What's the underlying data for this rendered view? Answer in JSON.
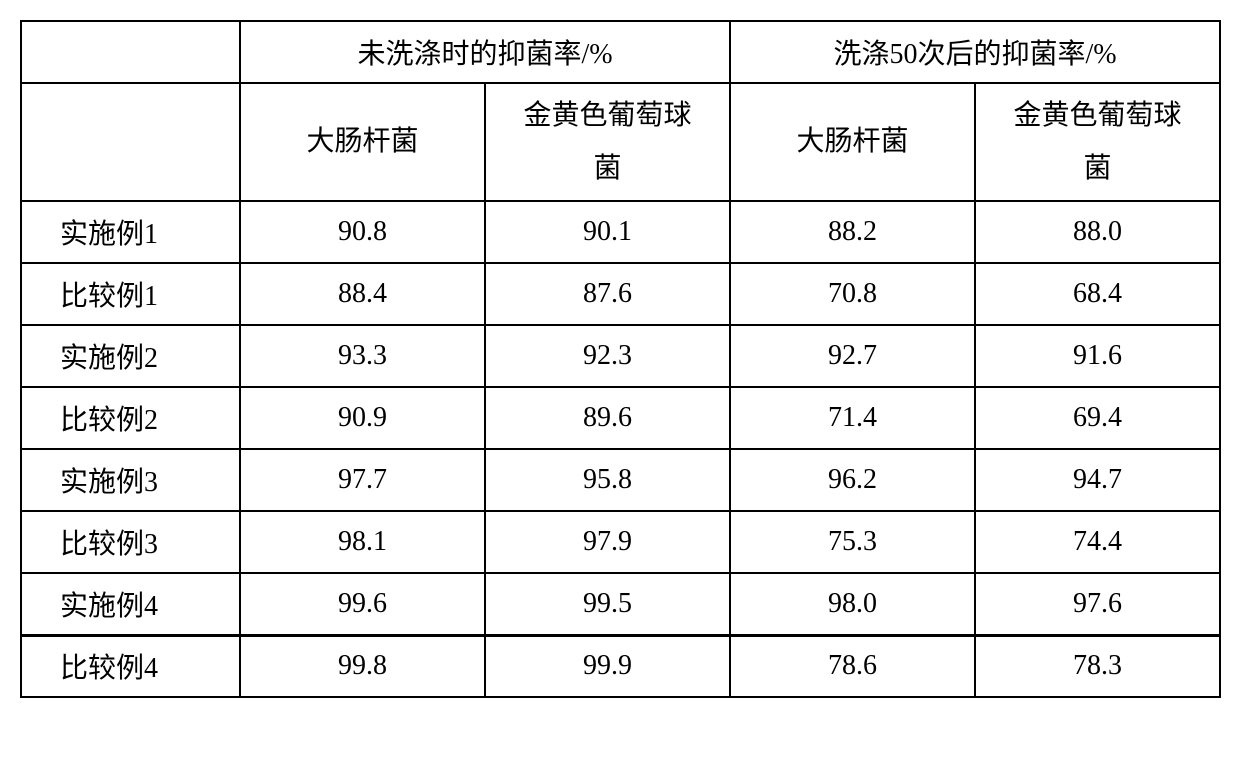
{
  "table": {
    "header_group_1": "未洗涤时的抑菌率/%",
    "header_group_2": "洗涤50次后的抑菌率/%",
    "sub_a": "大肠杆菌",
    "sub_b": "金黄色葡萄球\n菌",
    "rows": [
      {
        "label": "实施例1",
        "c1": "90.8",
        "c2": "90.1",
        "c3": "88.2",
        "c4": "88.0"
      },
      {
        "label": "比较例1",
        "c1": "88.4",
        "c2": "87.6",
        "c3": "70.8",
        "c4": "68.4"
      },
      {
        "label": "实施例2",
        "c1": "93.3",
        "c2": "92.3",
        "c3": "92.7",
        "c4": "91.6"
      },
      {
        "label": "比较例2",
        "c1": "90.9",
        "c2": "89.6",
        "c3": "71.4",
        "c4": "69.4"
      },
      {
        "label": "实施例3",
        "c1": "97.7",
        "c2": "95.8",
        "c3": "96.2",
        "c4": "94.7"
      },
      {
        "label": "比较例3",
        "c1": "98.1",
        "c2": "97.9",
        "c3": "75.3",
        "c4": "74.4"
      },
      {
        "label": "实施例4",
        "c1": "99.6",
        "c2": "99.5",
        "c3": "98.0",
        "c4": "97.6"
      },
      {
        "label": "比较例4",
        "c1": "99.8",
        "c2": "99.9",
        "c3": "78.6",
        "c4": "78.3"
      }
    ],
    "colors": {
      "border": "#000000",
      "background": "#ffffff",
      "text": "#000000"
    },
    "font": {
      "family": "SimSun",
      "size_pt": 21
    }
  }
}
